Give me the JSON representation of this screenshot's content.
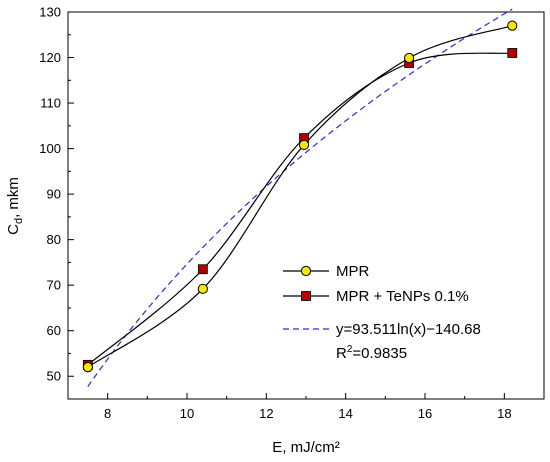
{
  "chart_data": {
    "type": "scatter",
    "xlabel": "E, mJ/cm²",
    "ylabel_main": "C",
    "ylabel_sub": "d",
    "ylabel_rest": ", mkm",
    "xlim": [
      7,
      19
    ],
    "ylim": [
      45,
      130
    ],
    "x_ticks": [
      8,
      10,
      12,
      14,
      16,
      18
    ],
    "y_ticks": [
      50,
      60,
      70,
      80,
      90,
      100,
      110,
      120,
      130
    ],
    "series": [
      {
        "name": "MPR",
        "marker": "circle",
        "marker_color": "#f5e800",
        "line_color": "#000000",
        "x": [
          7.5,
          10.4,
          12.95,
          15.6,
          18.2
        ],
        "y": [
          52.0,
          69.2,
          100.8,
          119.9,
          127.0
        ]
      },
      {
        "name": "MPR + TeNPs 0.1%",
        "marker": "square",
        "marker_color": "#b00000",
        "line_color": "#000000",
        "x": [
          7.5,
          10.4,
          12.95,
          15.6,
          18.2
        ],
        "y": [
          52.5,
          73.5,
          102.3,
          118.8,
          121.0
        ]
      },
      {
        "name": "y=93.511ln(x)−140.68",
        "style": "dashed",
        "line_color": "#2b2bd9",
        "fit": {
          "a": 93.511,
          "b": -140.68,
          "x_from": 7.5,
          "x_to": 18.2
        }
      }
    ],
    "annotation_r2_prefix": "R",
    "annotation_r2_sup": "2",
    "annotation_r2_value": "=0.9835",
    "legend_position": "bottom-right",
    "grid": false
  }
}
